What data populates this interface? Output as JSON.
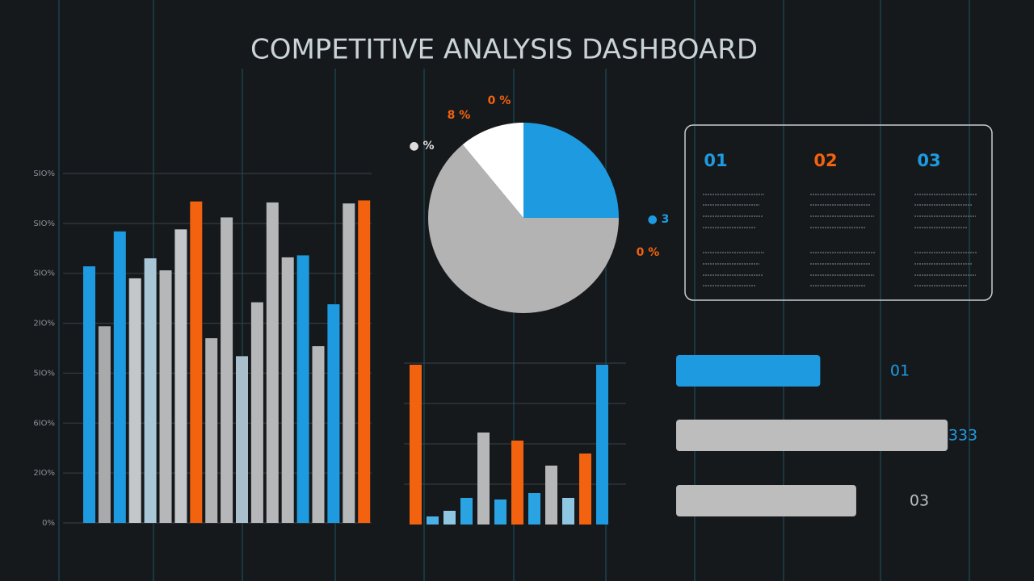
{
  "title": "COMPETITIVE ANALYSIS DASHBOARD",
  "chart_data": [
    {
      "type": "bar",
      "values": [
        257,
        197,
        292,
        245,
        265,
        253,
        294,
        322,
        185,
        306,
        167,
        221,
        321,
        266,
        268,
        177,
        219,
        320,
        323
      ],
      "colors": [
        "#1e9be0",
        "#a8aaac",
        "#1e9be0",
        "#c4c7ca",
        "#a9c6d6",
        "#b5b7b9",
        "#c4c7ca",
        "#f2620f",
        "#b0b2b4",
        "#b5b7b9",
        "#a9c0cc",
        "#b5b7b9",
        "#b5b7b9",
        "#b5b7b9",
        "#1e9be0",
        "#b5b7b9",
        "#1e9be0",
        "#b5b7b9",
        "#f2620f"
      ],
      "ylim": [
        0,
        350
      ],
      "yticks": [
        {
          "value": 0,
          "label": "0%"
        },
        {
          "value": 50,
          "label": "2IO%"
        },
        {
          "value": 100,
          "label": "6IO%"
        },
        {
          "value": 150,
          "label": "5IO%"
        },
        {
          "value": 200,
          "label": "2IO%"
        },
        {
          "value": 250,
          "label": "SIO%"
        },
        {
          "value": 300,
          "label": "SIO%"
        },
        {
          "value": 350,
          "label": "SIO%"
        }
      ],
      "grid": true
    },
    {
      "type": "bar",
      "values": [
        99,
        5,
        8.5,
        16.5,
        57,
        15.5,
        52,
        19.5,
        36.5,
        16.5,
        44,
        99
      ],
      "colors": [
        "#f2620f",
        "#4ab0e6",
        "#8fc6e2",
        "#2aa3e3",
        "#b5b7b9",
        "#2aa3e3",
        "#f2620f",
        "#2aa3e3",
        "#b5b7b9",
        "#8fc6e2",
        "#f2620f",
        "#1e9be0"
      ],
      "ylim": [
        0,
        100
      ],
      "yticks": [
        25,
        50,
        75,
        100
      ],
      "grid": true
    },
    {
      "type": "pie",
      "values": [
        25,
        64,
        11
      ],
      "colors": [
        "#1e9be0",
        "#b3b3b3",
        "#ffffff"
      ],
      "annotations": [
        "0 %",
        "8 %",
        "● %",
        "● 3",
        "0 %"
      ],
      "annotation_colors": [
        "#f2620f",
        "#f2620f",
        "#dddddd",
        "#1e9be0",
        "#f2620f"
      ]
    },
    {
      "type": "hbar",
      "values": [
        52,
        98,
        65
      ],
      "colors": [
        "#1e9be0",
        "#bdbdbd",
        "#bdbdbd"
      ],
      "labels": [
        "01",
        "333",
        "03"
      ],
      "label_colors": [
        "#1e9be0",
        "#1e9be0",
        "#bdbdbd"
      ],
      "xlim": [
        0,
        100
      ]
    }
  ],
  "panel": {
    "headings": [
      "01",
      "02",
      "03"
    ],
    "heading_colors": [
      "#1e9be0",
      "#f2620f",
      "#1e9be0"
    ]
  }
}
